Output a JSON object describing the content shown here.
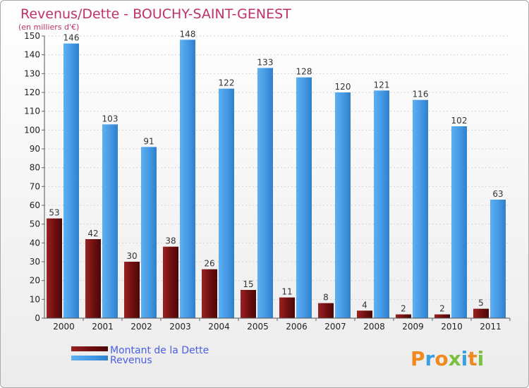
{
  "chart_data": {
    "type": "bar",
    "title": "Revenus/Dette - BOUCHY-SAINT-GENEST",
    "subtitle": "(en milliers d'€)",
    "categories": [
      "2000",
      "2001",
      "2002",
      "2003",
      "2004",
      "2005",
      "2006",
      "2007",
      "2008",
      "2009",
      "2010",
      "2011"
    ],
    "series": [
      {
        "name": "Montant de la Dette",
        "color": "#7a1414",
        "values": [
          53,
          42,
          30,
          38,
          26,
          15,
          11,
          8,
          4,
          2,
          2,
          5
        ]
      },
      {
        "name": "Revenus",
        "color": "#4a9ee6",
        "values": [
          146,
          103,
          91,
          148,
          122,
          133,
          128,
          120,
          121,
          116,
          102,
          63
        ]
      }
    ],
    "ylim": [
      0,
      150
    ],
    "yticks": [
      0,
      10,
      20,
      30,
      40,
      50,
      60,
      70,
      80,
      90,
      100,
      110,
      120,
      130,
      140,
      150
    ],
    "grid": true,
    "legend_position": "bottom-left"
  },
  "colors": {
    "title": "#c0306a",
    "legend_text": "#4a5ee6",
    "axis_text": "#222222"
  },
  "brand": {
    "logo_text": "Proxiti"
  }
}
